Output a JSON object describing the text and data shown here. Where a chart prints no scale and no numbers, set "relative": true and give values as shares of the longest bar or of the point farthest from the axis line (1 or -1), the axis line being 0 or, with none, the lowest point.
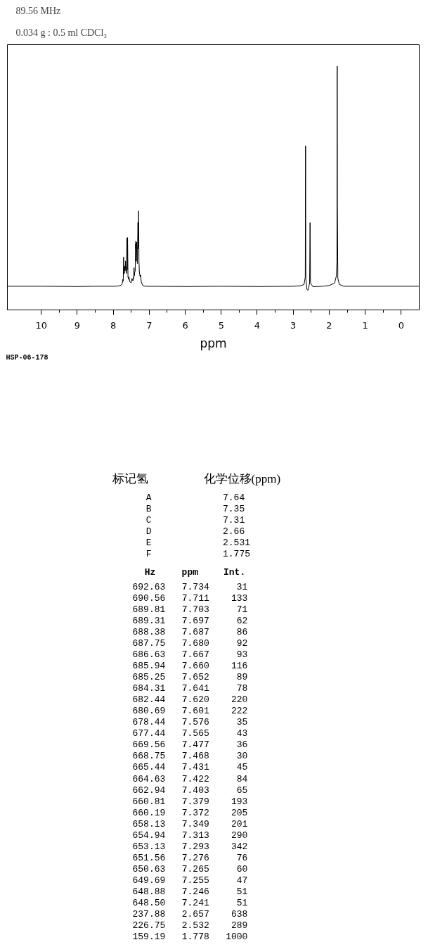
{
  "chart_data": [
    {
      "type": "line",
      "title": "89.56 MHz",
      "subtitle": "0.034 g : 0.5 ml CDCl₃",
      "xlabel": "ppm",
      "relative": true,
      "color": "#000000",
      "xlim": [
        10.94,
        -0.5
      ],
      "xticks": [
        10,
        {
          "value": 9.5,
          "label": null
        },
        9,
        {
          "value": 8.5,
          "label": null
        },
        8,
        {
          "value": 7.5,
          "label": null
        },
        7,
        {
          "value": 6.5,
          "label": null
        },
        6,
        {
          "value": 5.5,
          "label": null
        },
        5,
        {
          "value": 4.5,
          "label": null
        },
        4,
        {
          "value": 3.5,
          "label": null
        },
        3,
        {
          "value": 2.5,
          "label": null
        },
        2,
        {
          "value": 1.5,
          "label": null
        },
        1,
        {
          "value": 0.5,
          "label": null
        },
        0
      ],
      "x": [
        10.94,
        10.0,
        9.0,
        8.5,
        8.0,
        7.85,
        7.78,
        7.745,
        7.734,
        7.722,
        7.711,
        7.707,
        7.703,
        7.7,
        7.697,
        7.692,
        7.687,
        7.684,
        7.68,
        7.673,
        7.667,
        7.664,
        7.66,
        7.656,
        7.652,
        7.646,
        7.641,
        7.63,
        7.62,
        7.61,
        7.601,
        7.59,
        7.576,
        7.57,
        7.565,
        7.54,
        7.5,
        7.477,
        7.472,
        7.468,
        7.45,
        7.431,
        7.427,
        7.422,
        7.412,
        7.403,
        7.39,
        7.379,
        7.375,
        7.372,
        7.36,
        7.349,
        7.33,
        7.313,
        7.303,
        7.293,
        7.285,
        7.276,
        7.27,
        7.265,
        7.26,
        7.255,
        7.25,
        7.246,
        7.243,
        7.241,
        7.22,
        7.18,
        7.1,
        6.0,
        5.0,
        4.0,
        3.0,
        2.8,
        2.7,
        2.665,
        2.657,
        2.65,
        2.62,
        2.59,
        2.545,
        2.532,
        2.52,
        2.45,
        2.2,
        2.0,
        1.85,
        1.8,
        1.785,
        1.778,
        1.773,
        1.76,
        1.72,
        1.6,
        1.0,
        0.0,
        -0.5
      ],
      "values": [
        0.097,
        0.097,
        0.096,
        0.097,
        0.097,
        0.098,
        0.102,
        0.11,
        0.125,
        0.118,
        0.217,
        0.15,
        0.161,
        0.148,
        0.153,
        0.15,
        0.174,
        0.165,
        0.18,
        0.16,
        0.181,
        0.17,
        0.201,
        0.17,
        0.177,
        0.16,
        0.167,
        0.15,
        0.295,
        0.165,
        0.297,
        0.135,
        0.128,
        0.125,
        0.136,
        0.115,
        0.112,
        0.129,
        0.121,
        0.124,
        0.12,
        0.137,
        0.13,
        0.173,
        0.14,
        0.155,
        0.16,
        0.271,
        0.25,
        0.282,
        0.2,
        0.278,
        0.19,
        0.359,
        0.25,
        0.406,
        0.2,
        0.165,
        0.15,
        0.151,
        0.14,
        0.139,
        0.136,
        0.143,
        0.138,
        0.143,
        0.115,
        0.1,
        0.097,
        0.096,
        0.097,
        0.096,
        0.097,
        0.099,
        0.104,
        0.135,
        0.673,
        0.13,
        0.085,
        0.08,
        0.11,
        0.358,
        0.11,
        0.095,
        0.097,
        0.1,
        0.11,
        0.14,
        0.2,
        1.0,
        0.426,
        0.13,
        0.105,
        0.097,
        0.097,
        0.097,
        0.097
      ],
      "annotations": [
        "HSP-06-178"
      ]
    },
    {
      "type": "other",
      "annotations": [
        "标记氢 化学位移(ppm)",
        "A 7.64",
        "B 7.35",
        "C 7.31",
        "D 2.66",
        "E 2.531",
        "F 1.775"
      ]
    },
    {
      "type": "other",
      "annotations": [
        "Hz ppm Int.",
        "692.63 7.734 31",
        "690.56 7.711 133",
        "689.81 7.703 71",
        "689.31 7.697 62",
        "688.38 7.687 86",
        "687.75 7.680 92",
        "686.63 7.667 93",
        "685.94 7.660 116",
        "685.25 7.652 89",
        "684.31 7.641 78",
        "682.44 7.620 220",
        "680.69 7.601 222",
        "678.44 7.576 35",
        "677.44 7.565 43",
        "669.56 7.477 36",
        "668.75 7.468 30",
        "665.44 7.431 45",
        "664.63 7.422 84",
        "662.94 7.403 65",
        "660.81 7.379 193",
        "660.19 7.372 205",
        "658.13 7.349 201",
        "654.94 7.313 290",
        "653.13 7.293 342",
        "651.56 7.276 76",
        "650.63 7.265 60",
        "649.69 7.255 47",
        "648.88 7.246 51",
        "648.50 7.241 51",
        "237.88 2.657 638",
        "226.75 2.532 289",
        "159.19 1.778 1000"
      ]
    }
  ]
}
